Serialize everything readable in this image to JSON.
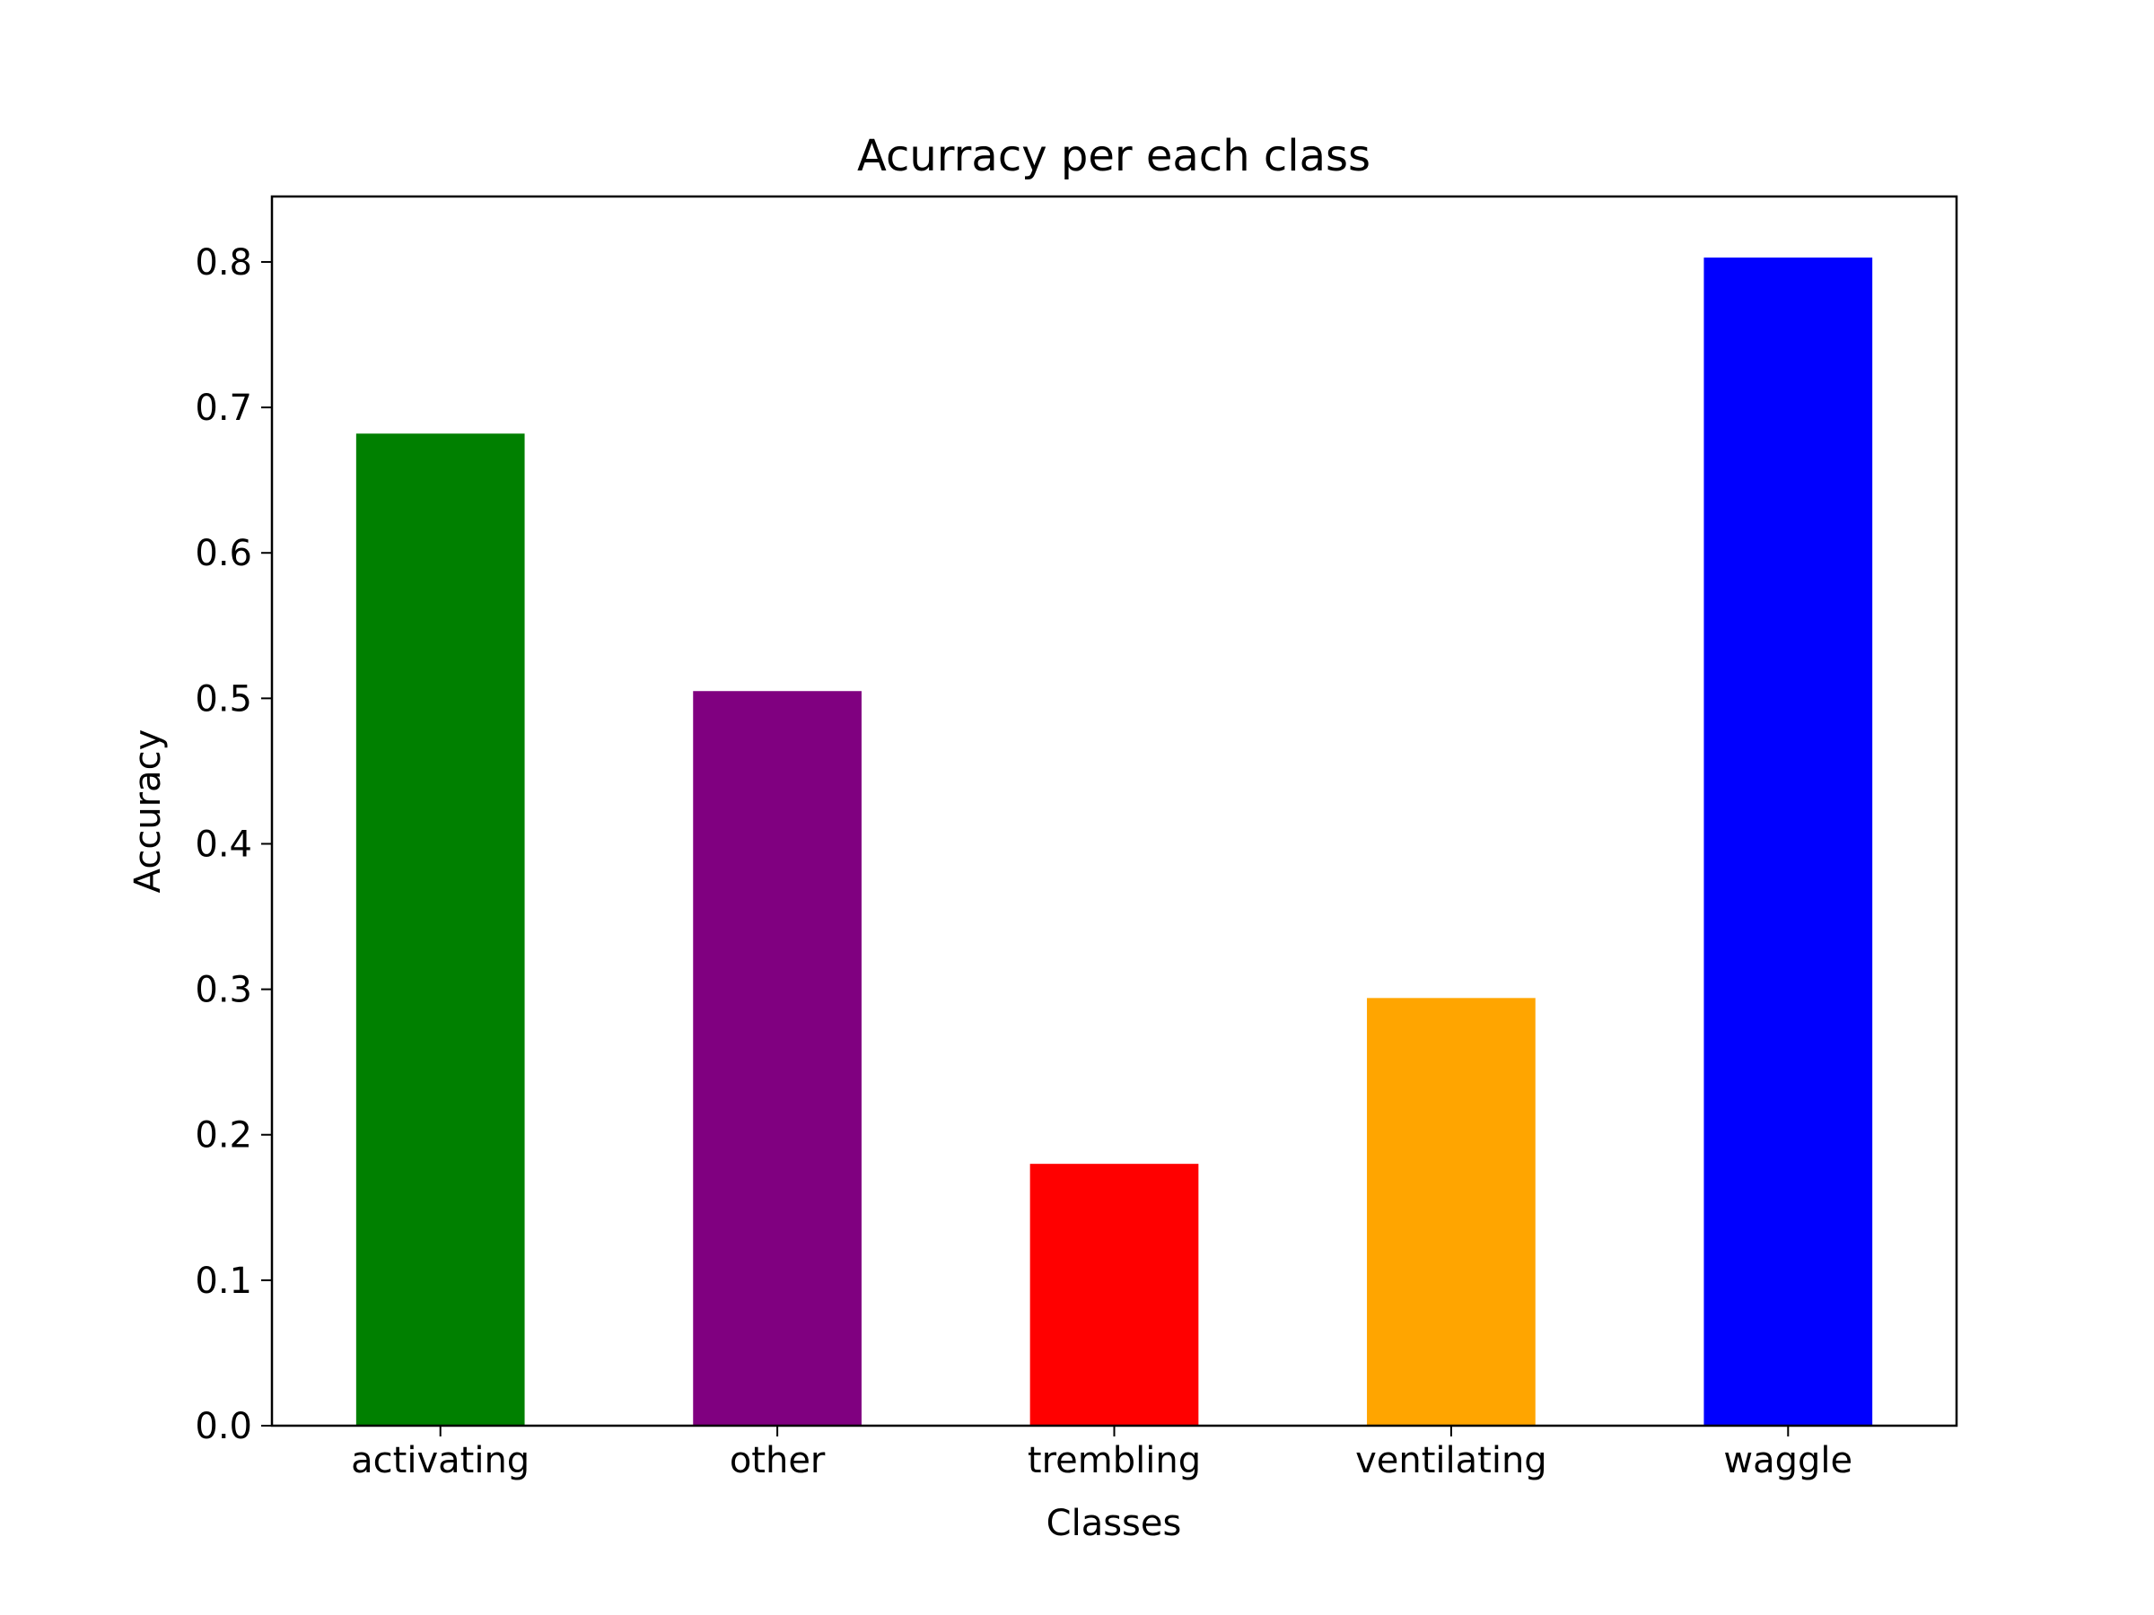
{
  "chart_data": {
    "type": "bar",
    "title": "Acurracy per each class",
    "xlabel": "Classes",
    "ylabel": "Accuracy",
    "categories": [
      "activating",
      "other",
      "trembling",
      "ventilating",
      "waggle"
    ],
    "values": [
      0.682,
      0.505,
      0.18,
      0.294,
      0.803
    ],
    "colors": [
      "#008000",
      "#800080",
      "#ff0000",
      "#ffa500",
      "#0000ff"
    ],
    "ylim": [
      0,
      0.845
    ],
    "yticks": [
      0.0,
      0.1,
      0.2,
      0.3,
      0.4,
      0.5,
      0.6,
      0.7,
      0.8
    ],
    "ytick_labels": [
      "0.0",
      "0.1",
      "0.2",
      "0.3",
      "0.4",
      "0.5",
      "0.6",
      "0.7",
      "0.8"
    ],
    "grid": false,
    "legend": false
  }
}
